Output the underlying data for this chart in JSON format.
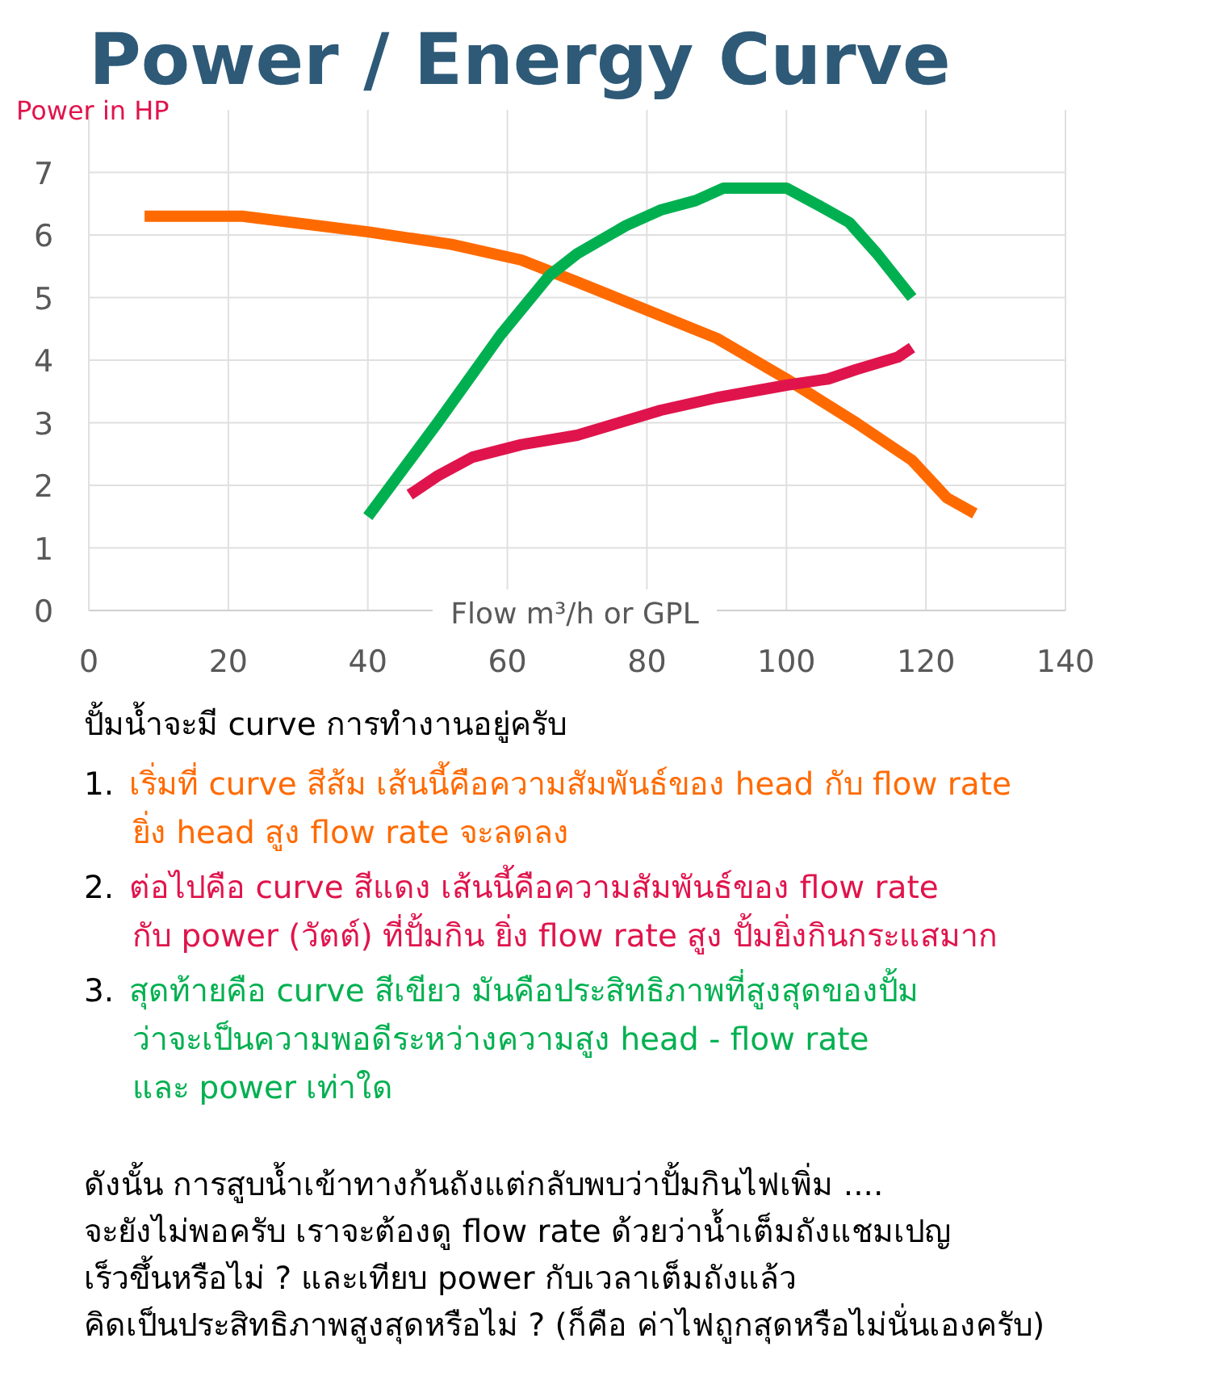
{
  "chart_data": {
    "type": "line",
    "title": "Power / Energy Curve",
    "ylabel": "Power in HP",
    "xlabel": "Flow m³/h or GPL",
    "xlim": [
      0,
      140
    ],
    "xticks": [
      0,
      20,
      40,
      60,
      80,
      100,
      120,
      140
    ],
    "ylim": [
      0,
      8
    ],
    "yticks": [
      0,
      1,
      2,
      3,
      4,
      5,
      6,
      7
    ],
    "grid": true,
    "marker": "none",
    "series": [
      {
        "color": "#ff6a00",
        "x": [
          8,
          22,
          40,
          52,
          62,
          70,
          80,
          90,
          100,
          110,
          118,
          123,
          127
        ],
        "values": [
          6.3,
          6.3,
          6.05,
          5.85,
          5.6,
          5.25,
          4.8,
          4.35,
          3.7,
          3.0,
          2.4,
          1.8,
          1.55
        ]
      },
      {
        "color": "#e0144c",
        "x": [
          46,
          50,
          55,
          62,
          70,
          76,
          82,
          90,
          100,
          106,
          110,
          116,
          118
        ],
        "values": [
          1.85,
          2.15,
          2.45,
          2.65,
          2.8,
          3.0,
          3.2,
          3.4,
          3.6,
          3.7,
          3.85,
          4.05,
          4.2
        ]
      },
      {
        "color": "#00b050",
        "x": [
          40,
          50,
          59,
          66,
          70,
          77,
          82,
          87,
          91,
          100,
          105,
          109,
          113,
          118
        ],
        "values": [
          1.5,
          3.0,
          4.4,
          5.35,
          5.7,
          6.15,
          6.4,
          6.55,
          6.75,
          6.75,
          6.45,
          6.2,
          5.7,
          5.0
        ]
      }
    ],
    "annotations": [
      "ปั้มน้ำจะมี curve การทำงานอยู่ครับ",
      "1. เริ่มที่ curve สีส้ม เส้นนี้คือความสัมพันธ์ของ head กับ flow rate\nยิ่ง head สูง  flow rate จะลดลง",
      "2. ต่อไปคือ curve สีแดง  เส้นนี้คือความสัมพันธ์ของ flow rate\nกับ power (วัตต์) ที่ปั้มกิน  ยิ่ง flow rate สูง  ปั้มยิ่งกินกระแสมาก",
      "3. สุดท้ายคือ curve สีเขียว  มันคือประสิทธิภาพที่สูงสุดของปั้ม\nว่าจะเป็นความพอดีระหว่างความสูง head - flow rate\nและ power เท่าใด",
      "ดังนั้น  การสูบน้ำเข้าทางก้นถังแต่กลับพบว่าปั้มกินไฟเพิ่ม ....\nจะยังไม่พอครับ  เราจะต้องดู flow rate ด้วยว่าน้ำเต็มถังแชมเปญ\nเร็วขึ้นหรือไม่ ?   และเทียบ power กับเวลาเต็มถังแล้ว\nคิดเป็นประสิทธิภาพสูงสุดหรือไม่ ? (ก็คือ ค่าไฟถูกสุดหรือไม่นั่นเองครับ)"
    ]
  }
}
